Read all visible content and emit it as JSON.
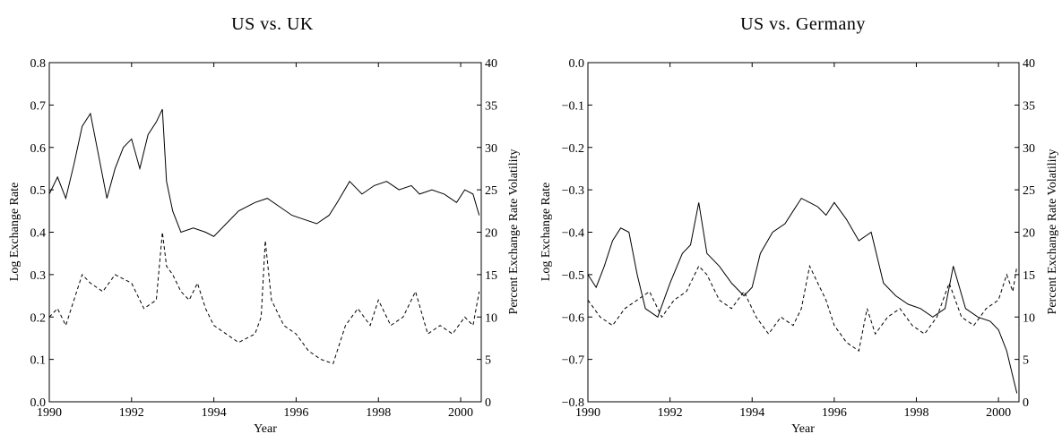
{
  "chart_data": [
    {
      "type": "line",
      "title": "US vs. UK",
      "xlabel": "Year",
      "ylabel": "Log Exchange Rate",
      "y2label": "Percent Exchange Rate Volatility",
      "xlim": [
        1990,
        2000.5
      ],
      "ylim": [
        0.0,
        0.8
      ],
      "y2lim": [
        0,
        40
      ],
      "xticks": [
        "1990",
        "1992",
        "1994",
        "1996",
        "1998",
        "2000"
      ],
      "yticks": [
        "0.0",
        "0.1",
        "0.2",
        "0.3",
        "0.4",
        "0.5",
        "0.6",
        "0.7",
        "0.8"
      ],
      "y2ticks": [
        "0",
        "5",
        "10",
        "15",
        "20",
        "25",
        "30",
        "35",
        "40"
      ],
      "grid": false,
      "series": [
        {
          "axis": "left",
          "style": "solid",
          "x": [
            1990.0,
            1990.2,
            1990.4,
            1990.6,
            1990.8,
            1991.0,
            1991.2,
            1991.4,
            1991.6,
            1991.8,
            1992.0,
            1992.2,
            1992.4,
            1992.6,
            1992.75,
            1992.85,
            1993.0,
            1993.2,
            1993.5,
            1993.8,
            1994.0,
            1994.3,
            1994.6,
            1995.0,
            1995.3,
            1995.6,
            1995.9,
            1996.2,
            1996.5,
            1996.8,
            1997.0,
            1997.3,
            1997.6,
            1997.9,
            1998.2,
            1998.5,
            1998.8,
            1999.0,
            1999.3,
            1999.6,
            1999.9,
            2000.1,
            2000.3,
            2000.45
          ],
          "values": [
            0.49,
            0.53,
            0.48,
            0.56,
            0.65,
            0.68,
            0.58,
            0.48,
            0.55,
            0.6,
            0.62,
            0.55,
            0.63,
            0.66,
            0.69,
            0.52,
            0.45,
            0.4,
            0.41,
            0.4,
            0.39,
            0.42,
            0.45,
            0.47,
            0.48,
            0.46,
            0.44,
            0.43,
            0.42,
            0.44,
            0.47,
            0.52,
            0.49,
            0.51,
            0.52,
            0.5,
            0.51,
            0.49,
            0.5,
            0.49,
            0.47,
            0.5,
            0.49,
            0.44
          ]
        },
        {
          "axis": "right",
          "style": "dashed",
          "x": [
            1990.0,
            1990.2,
            1990.4,
            1990.6,
            1990.8,
            1991.0,
            1991.3,
            1991.6,
            1992.0,
            1992.3,
            1992.6,
            1992.75,
            1992.85,
            1993.0,
            1993.2,
            1993.4,
            1993.6,
            1993.8,
            1994.0,
            1994.3,
            1994.6,
            1995.0,
            1995.15,
            1995.25,
            1995.4,
            1995.7,
            1996.0,
            1996.3,
            1996.6,
            1996.9,
            1997.2,
            1997.5,
            1997.8,
            1998.0,
            1998.3,
            1998.6,
            1998.9,
            1999.2,
            1999.5,
            1999.8,
            2000.1,
            2000.3,
            2000.45
          ],
          "values": [
            10,
            11,
            9,
            12,
            15,
            14,
            13,
            15,
            14,
            11,
            12,
            20,
            16,
            15,
            13,
            12,
            14,
            11,
            9,
            8,
            7,
            8,
            10,
            19,
            12,
            9,
            8,
            6,
            5,
            4.5,
            9,
            11,
            9,
            12,
            9,
            10,
            13,
            8,
            9,
            8,
            10,
            9,
            13
          ]
        }
      ]
    },
    {
      "type": "line",
      "title": "US vs. Germany",
      "xlabel": "Year",
      "ylabel": "Log Exchange Rate",
      "y2label": "Percent Exchange Rate Volatility",
      "xlim": [
        1990,
        2000.5
      ],
      "ylim": [
        -0.8,
        0.0
      ],
      "y2lim": [
        0,
        40
      ],
      "xticks": [
        "1990",
        "1992",
        "1994",
        "1996",
        "1998",
        "2000"
      ],
      "yticks": [
        "−0.8",
        "−0.7",
        "−0.6",
        "−0.5",
        "−0.4",
        "−0.3",
        "−0.2",
        "−0.1",
        "0.0"
      ],
      "y2ticks": [
        "0",
        "5",
        "10",
        "15",
        "20",
        "25",
        "30",
        "35",
        "40"
      ],
      "grid": false,
      "series": [
        {
          "axis": "left",
          "style": "solid",
          "x": [
            1990.0,
            1990.2,
            1990.4,
            1990.6,
            1990.8,
            1991.0,
            1991.2,
            1991.4,
            1991.7,
            1992.0,
            1992.3,
            1992.5,
            1992.7,
            1992.9,
            1993.2,
            1993.5,
            1993.8,
            1994.0,
            1994.2,
            1994.5,
            1994.8,
            1995.0,
            1995.2,
            1995.4,
            1995.6,
            1995.8,
            1996.0,
            1996.3,
            1996.6,
            1996.9,
            1997.2,
            1997.5,
            1997.8,
            1998.1,
            1998.4,
            1998.7,
            1998.9,
            1999.2,
            1999.5,
            1999.8,
            2000.0,
            2000.2,
            2000.35,
            2000.45
          ],
          "values": [
            -0.5,
            -0.53,
            -0.48,
            -0.42,
            -0.39,
            -0.4,
            -0.5,
            -0.58,
            -0.6,
            -0.52,
            -0.45,
            -0.43,
            -0.33,
            -0.45,
            -0.48,
            -0.52,
            -0.55,
            -0.53,
            -0.45,
            -0.4,
            -0.38,
            -0.35,
            -0.32,
            -0.33,
            -0.34,
            -0.36,
            -0.33,
            -0.37,
            -0.42,
            -0.4,
            -0.52,
            -0.55,
            -0.57,
            -0.58,
            -0.6,
            -0.58,
            -0.48,
            -0.58,
            -0.6,
            -0.61,
            -0.63,
            -0.68,
            -0.74,
            -0.78
          ]
        },
        {
          "axis": "right",
          "style": "dashed",
          "x": [
            1990.0,
            1990.3,
            1990.6,
            1990.9,
            1991.2,
            1991.5,
            1991.8,
            1992.1,
            1992.4,
            1992.7,
            1992.9,
            1993.2,
            1993.5,
            1993.8,
            1994.1,
            1994.4,
            1994.7,
            1995.0,
            1995.2,
            1995.4,
            1995.6,
            1995.8,
            1996.0,
            1996.3,
            1996.6,
            1996.8,
            1997.0,
            1997.3,
            1997.6,
            1997.9,
            1998.2,
            1998.5,
            1998.8,
            1999.1,
            1999.4,
            1999.7,
            2000.0,
            2000.2,
            2000.35,
            2000.45
          ],
          "values": [
            12,
            10,
            9,
            11,
            12,
            13,
            10,
            12,
            13,
            16,
            15,
            12,
            11,
            13,
            10,
            8,
            10,
            9,
            11,
            16,
            14,
            12,
            9,
            7,
            6,
            11,
            8,
            10,
            11,
            9,
            8,
            10,
            14,
            10,
            9,
            11,
            12,
            15,
            13,
            16
          ]
        }
      ]
    }
  ]
}
